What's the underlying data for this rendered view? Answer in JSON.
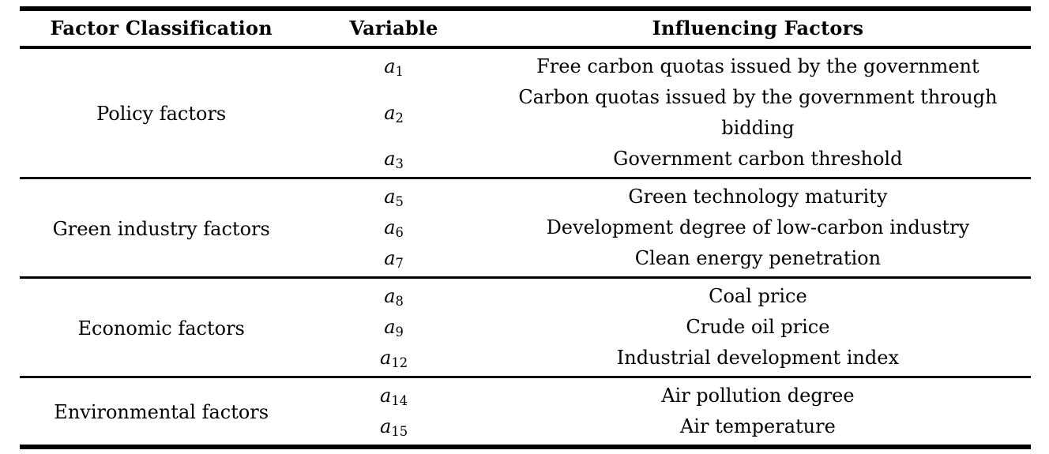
{
  "table": {
    "headers": {
      "classification": "Factor Classification",
      "variable": "Variable",
      "factor": "Influencing Factors"
    },
    "groups": [
      {
        "classification": "Policy factors",
        "rows": [
          {
            "variable": {
              "base": "a",
              "sub": "1"
            },
            "factor": "Free carbon quotas issued by the government"
          },
          {
            "variable": {
              "base": "a",
              "sub": "2"
            },
            "factor": "Carbon quotas issued by the government through bidding"
          },
          {
            "variable": {
              "base": "a",
              "sub": "3"
            },
            "factor": "Government carbon threshold"
          }
        ]
      },
      {
        "classification": "Green industry factors",
        "rows": [
          {
            "variable": {
              "base": "a",
              "sub": "5"
            },
            "factor": "Green technology maturity"
          },
          {
            "variable": {
              "base": "a",
              "sub": "6"
            },
            "factor": "Development degree of low-carbon industry"
          },
          {
            "variable": {
              "base": "a",
              "sub": "7"
            },
            "factor": "Clean energy penetration"
          }
        ]
      },
      {
        "classification": "Economic factors",
        "rows": [
          {
            "variable": {
              "base": "a",
              "sub": "8"
            },
            "factor": "Coal price"
          },
          {
            "variable": {
              "base": "a",
              "sub": "9"
            },
            "factor": "Crude oil price"
          },
          {
            "variable": {
              "base": "a",
              "sub": "12"
            },
            "factor": "Industrial development index"
          }
        ]
      },
      {
        "classification": "Environmental factors",
        "rows": [
          {
            "variable": {
              "base": "a",
              "sub": "14"
            },
            "factor": "Air pollution degree"
          },
          {
            "variable": {
              "base": "a",
              "sub": "15"
            },
            "factor": "Air temperature"
          }
        ]
      }
    ],
    "colors": {
      "text": "#000000",
      "rule": "#000000",
      "background": "#ffffff"
    }
  }
}
